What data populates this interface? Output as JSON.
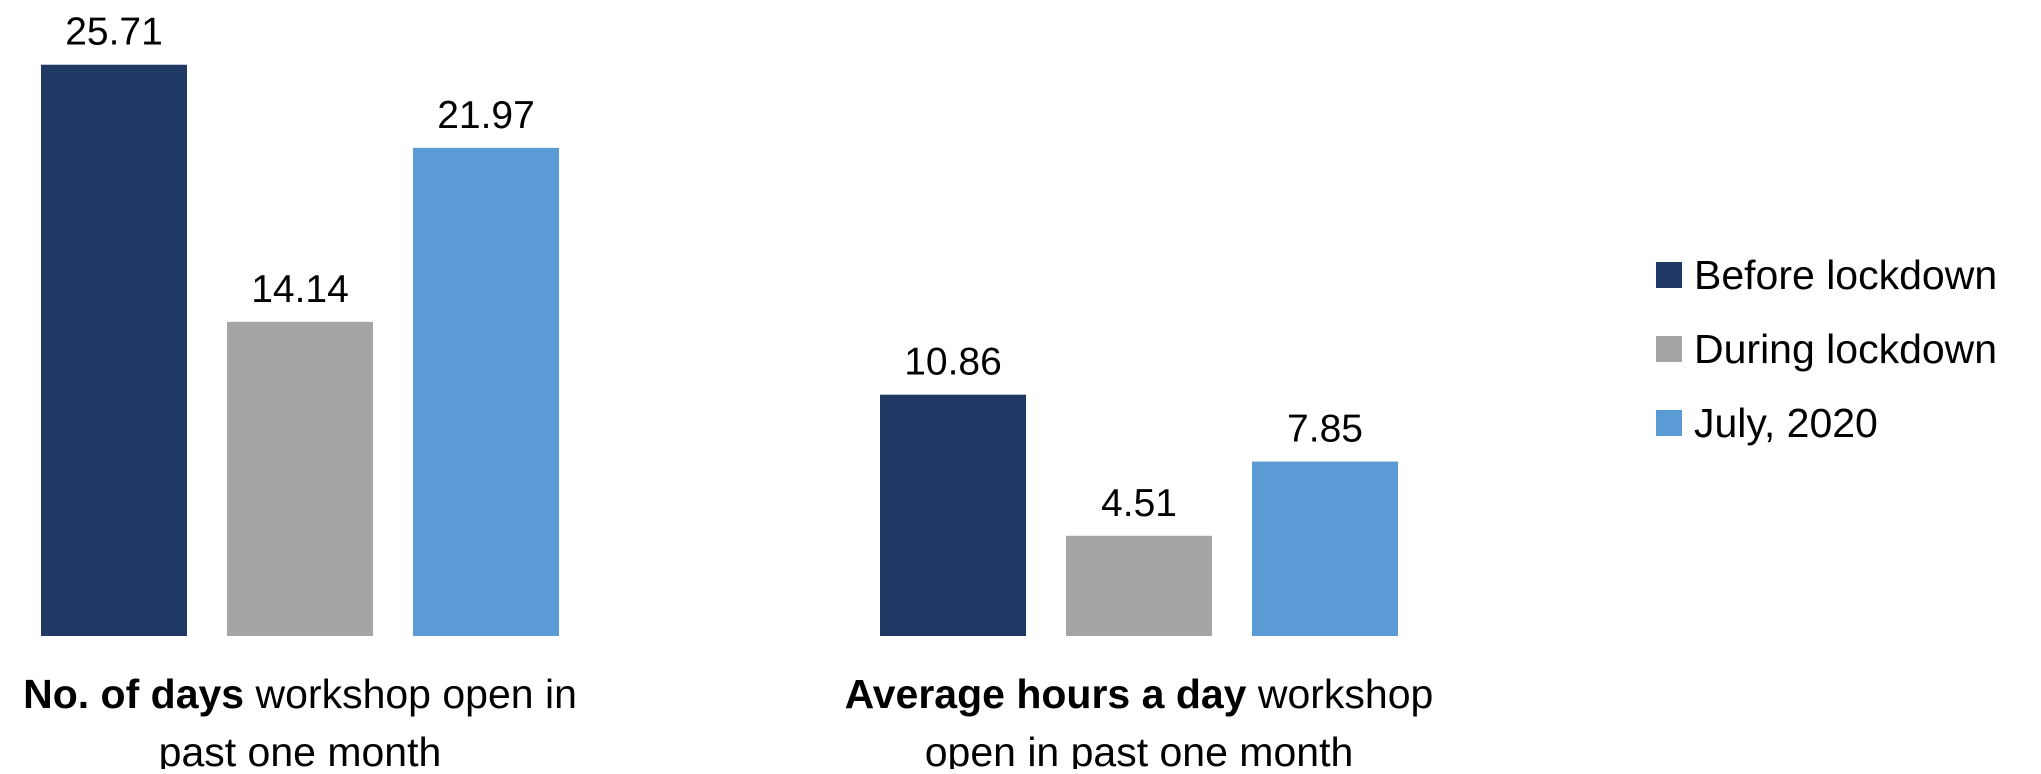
{
  "chart_data": {
    "type": "bar",
    "categories": [
      {
        "label_bold": "No. of days",
        "label_rest_line1": " workshop open in",
        "label_line2": "past one month"
      },
      {
        "label_bold": "Average hours a day",
        "label_rest_line1": " workshop",
        "label_line2": "open in past one month"
      }
    ],
    "series": [
      {
        "name": "Before lockdown",
        "color": "#203864",
        "values": [
          25.71,
          10.86
        ],
        "labels": [
          "25.71",
          "10.86"
        ]
      },
      {
        "name": "During lockdown",
        "color": "#A5A5A5",
        "values": [
          14.14,
          4.51
        ],
        "labels": [
          "14.14",
          "4.51"
        ]
      },
      {
        "name": "July, 2020",
        "color": "#5B9BD5",
        "values": [
          21.97,
          7.85
        ],
        "labels": [
          "21.97",
          "7.85"
        ]
      }
    ],
    "legend_position": "right",
    "gridlines": false
  }
}
